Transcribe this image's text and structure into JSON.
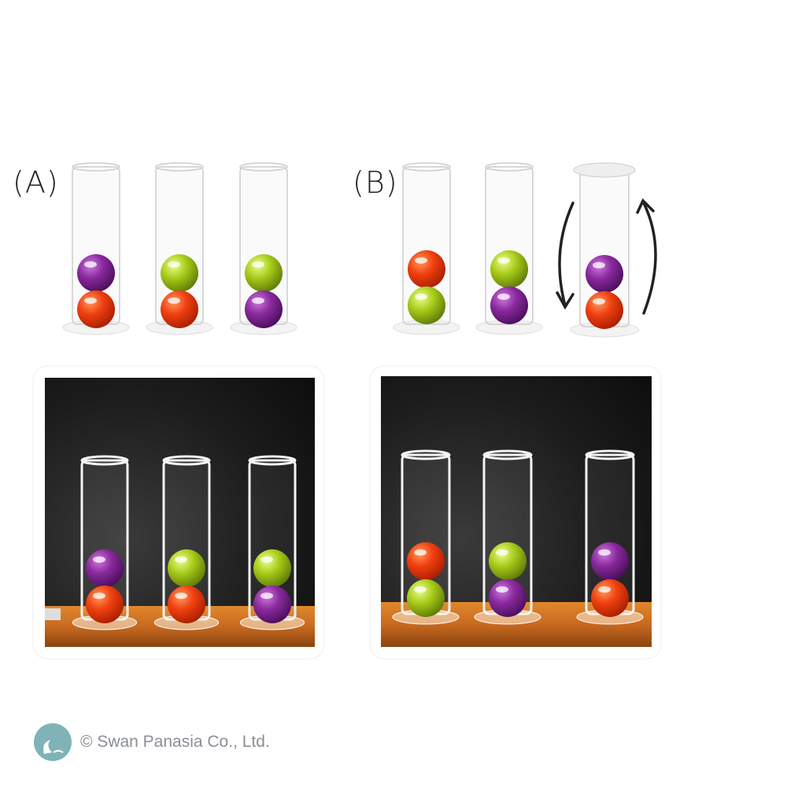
{
  "labels": {
    "a": "(A)",
    "b": "(B)"
  },
  "footer": {
    "copyright": "© Swan Panasia Co., Ltd.",
    "logo_text": "SWAN PANASIA"
  },
  "colors": {
    "purple": "#8a2a9e",
    "red": "#f04010",
    "green": "#a8cc1a",
    "board": "#1a1a1a",
    "wood": "#c86a20",
    "logo": "#7fb3b8"
  },
  "diagrams": {
    "a": [
      [
        "purple",
        "red"
      ],
      [
        "green",
        "red"
      ],
      [
        "green",
        "purple"
      ]
    ],
    "b": [
      [
        "red",
        "green"
      ],
      [
        "green",
        "purple"
      ],
      [
        "purple",
        "red"
      ]
    ]
  },
  "photos": {
    "a": [
      [
        "purple",
        "red"
      ],
      [
        "green",
        "red"
      ],
      [
        "green",
        "purple"
      ]
    ],
    "b": [
      [
        "red",
        "green"
      ],
      [
        "green",
        "purple"
      ],
      [
        "purple",
        "red"
      ]
    ]
  },
  "note": {
    "b_third_tube": "inverted"
  }
}
